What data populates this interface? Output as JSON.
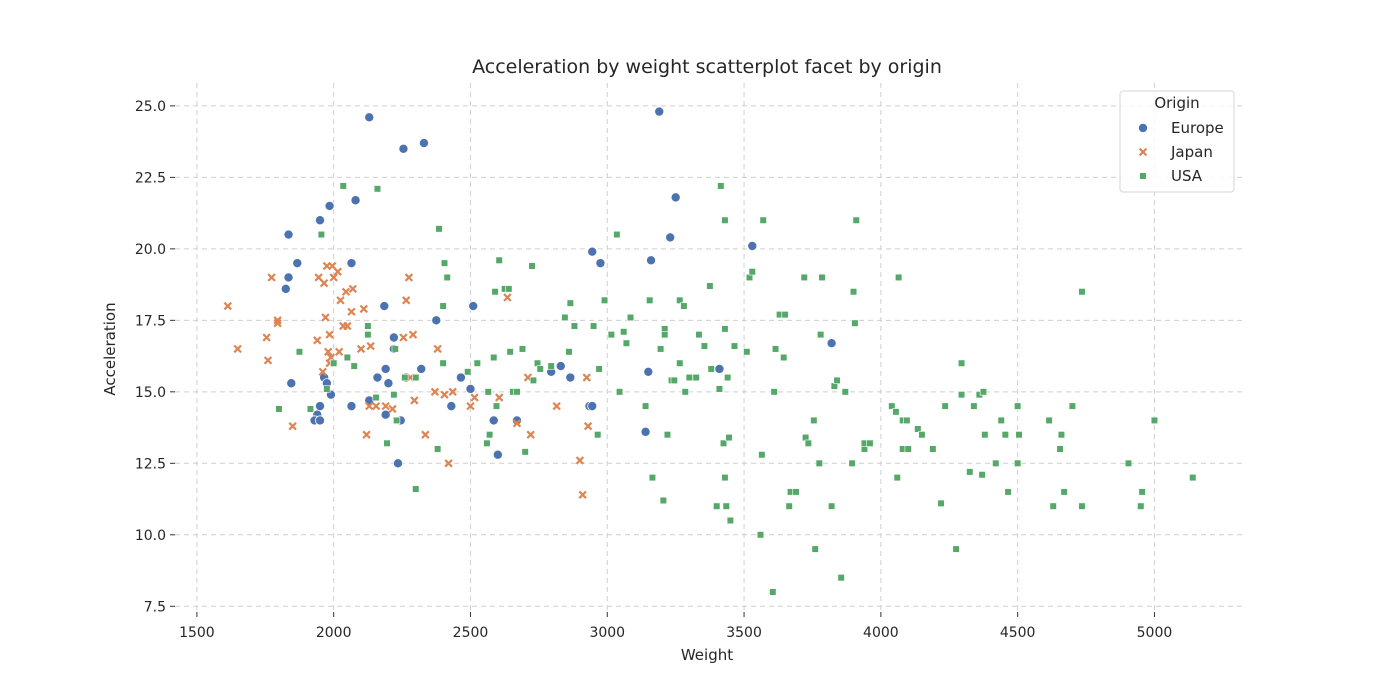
{
  "chart_data": {
    "type": "scatter",
    "title": "Acceleration by weight scatterplot facet by origin",
    "xlabel": "Weight",
    "ylabel": "Acceleration",
    "xlim": [
      1420,
      5320
    ],
    "ylim": [
      7.3,
      25.8
    ],
    "x_ticks": [
      "1500",
      "2000",
      "2500",
      "3000",
      "3500",
      "4000",
      "4500",
      "5000"
    ],
    "y_ticks": [
      "7.5",
      "10.0",
      "12.5",
      "15.0",
      "17.5",
      "20.0",
      "22.5",
      "25.0"
    ],
    "grid": true,
    "legend": {
      "title": "Origin",
      "placement": "top-right"
    },
    "series": [
      {
        "name": "Europe",
        "marker": "circle",
        "color": "#4c72b0",
        "points": [
          [
            1835,
            20.5
          ],
          [
            1825,
            18.6
          ],
          [
            1835,
            19.0
          ],
          [
            1867,
            19.5
          ],
          [
            1845,
            15.3
          ],
          [
            1940,
            14.2
          ],
          [
            1950,
            14.5
          ],
          [
            1930,
            14.0
          ],
          [
            1950,
            14.0
          ],
          [
            1965,
            15.5
          ],
          [
            1975,
            15.3
          ],
          [
            1990,
            14.9
          ],
          [
            1950,
            21.0
          ],
          [
            1985,
            21.5
          ],
          [
            2080,
            21.7
          ],
          [
            2065,
            19.5
          ],
          [
            2130,
            24.6
          ],
          [
            2255,
            23.5
          ],
          [
            2330,
            23.7
          ],
          [
            2130,
            14.7
          ],
          [
            2065,
            14.5
          ],
          [
            2190,
            14.2
          ],
          [
            2160,
            15.5
          ],
          [
            2190,
            15.8
          ],
          [
            2200,
            15.3
          ],
          [
            2185,
            18.0
          ],
          [
            2220,
            16.9
          ],
          [
            2220,
            16.5
          ],
          [
            2235,
            12.5
          ],
          [
            2245,
            14.0
          ],
          [
            2265,
            15.5
          ],
          [
            2320,
            15.8
          ],
          [
            2375,
            17.5
          ],
          [
            2430,
            14.5
          ],
          [
            2465,
            15.5
          ],
          [
            2500,
            15.1
          ],
          [
            2510,
            18.0
          ],
          [
            2585,
            14.0
          ],
          [
            2600,
            12.8
          ],
          [
            2670,
            14.0
          ],
          [
            2795,
            15.7
          ],
          [
            2830,
            15.9
          ],
          [
            2865,
            15.5
          ],
          [
            2935,
            14.5
          ],
          [
            2945,
            14.5
          ],
          [
            2945,
            19.9
          ],
          [
            2975,
            19.5
          ],
          [
            3140,
            13.6
          ],
          [
            3150,
            15.7
          ],
          [
            3160,
            19.6
          ],
          [
            3190,
            24.8
          ],
          [
            3230,
            20.4
          ],
          [
            3250,
            21.8
          ],
          [
            3410,
            15.8
          ],
          [
            3530,
            20.1
          ],
          [
            3820,
            16.7
          ]
        ]
      },
      {
        "name": "Japan",
        "marker": "x",
        "color": "#dd8452",
        "points": [
          [
            1613,
            18.0
          ],
          [
            1649,
            16.5
          ],
          [
            1755,
            16.9
          ],
          [
            1760,
            16.1
          ],
          [
            1773,
            19.0
          ],
          [
            1795,
            17.4
          ],
          [
            1795,
            17.5
          ],
          [
            1850,
            13.8
          ],
          [
            1940,
            16.8
          ],
          [
            1945,
            19.0
          ],
          [
            1960,
            15.7
          ],
          [
            1965,
            18.8
          ],
          [
            1970,
            17.6
          ],
          [
            1975,
            19.4
          ],
          [
            1980,
            16.4
          ],
          [
            1985,
            17.0
          ],
          [
            1985,
            16.0
          ],
          [
            1990,
            16.2
          ],
          [
            1995,
            19.4
          ],
          [
            2000,
            19.0
          ],
          [
            2015,
            19.2
          ],
          [
            2020,
            16.4
          ],
          [
            2025,
            18.2
          ],
          [
            2035,
            17.3
          ],
          [
            2045,
            18.5
          ],
          [
            2050,
            17.3
          ],
          [
            2065,
            17.8
          ],
          [
            2070,
            18.6
          ],
          [
            2100,
            16.5
          ],
          [
            2110,
            17.9
          ],
          [
            2120,
            13.5
          ],
          [
            2130,
            14.5
          ],
          [
            2135,
            16.6
          ],
          [
            2155,
            14.5
          ],
          [
            2190,
            14.5
          ],
          [
            2215,
            14.4
          ],
          [
            2255,
            16.9
          ],
          [
            2265,
            18.2
          ],
          [
            2275,
            19.0
          ],
          [
            2280,
            15.5
          ],
          [
            2290,
            17.0
          ],
          [
            2295,
            14.7
          ],
          [
            2335,
            13.5
          ],
          [
            2370,
            15.0
          ],
          [
            2380,
            16.5
          ],
          [
            2405,
            14.9
          ],
          [
            2420,
            12.5
          ],
          [
            2435,
            15.0
          ],
          [
            2500,
            14.5
          ],
          [
            2515,
            14.8
          ],
          [
            2605,
            14.8
          ],
          [
            2635,
            18.3
          ],
          [
            2670,
            13.9
          ],
          [
            2710,
            15.5
          ],
          [
            2720,
            13.5
          ],
          [
            2815,
            14.5
          ],
          [
            2900,
            12.6
          ],
          [
            2910,
            11.4
          ],
          [
            2925,
            15.5
          ],
          [
            2930,
            13.8
          ]
        ]
      },
      {
        "name": "USA",
        "marker": "square",
        "color": "#55a868",
        "points": [
          [
            1800,
            14.4
          ],
          [
            1875,
            16.4
          ],
          [
            1915,
            14.4
          ],
          [
            1955,
            20.5
          ],
          [
            1975,
            15.1
          ],
          [
            2000,
            16.0
          ],
          [
            2035,
            22.2
          ],
          [
            2050,
            16.2
          ],
          [
            2075,
            15.9
          ],
          [
            2125,
            17.3
          ],
          [
            2125,
            17.0
          ],
          [
            2155,
            14.8
          ],
          [
            2160,
            22.1
          ],
          [
            2195,
            13.2
          ],
          [
            2220,
            14.9
          ],
          [
            2225,
            16.5
          ],
          [
            2230,
            14.0
          ],
          [
            2260,
            15.5
          ],
          [
            2300,
            11.6
          ],
          [
            2300,
            15.5
          ],
          [
            2380,
            13.0
          ],
          [
            2385,
            20.7
          ],
          [
            2400,
            16.0
          ],
          [
            2400,
            18.0
          ],
          [
            2405,
            19.5
          ],
          [
            2415,
            19.0
          ],
          [
            2490,
            15.7
          ],
          [
            2525,
            16.0
          ],
          [
            2560,
            13.2
          ],
          [
            2565,
            15.0
          ],
          [
            2570,
            13.5
          ],
          [
            2585,
            16.2
          ],
          [
            2590,
            18.5
          ],
          [
            2595,
            14.5
          ],
          [
            2605,
            19.6
          ],
          [
            2625,
            18.6
          ],
          [
            2640,
            18.6
          ],
          [
            2645,
            16.4
          ],
          [
            2655,
            15.0
          ],
          [
            2670,
            15.0
          ],
          [
            2690,
            16.5
          ],
          [
            2700,
            12.9
          ],
          [
            2725,
            19.4
          ],
          [
            2730,
            15.4
          ],
          [
            2745,
            16.0
          ],
          [
            2755,
            15.8
          ],
          [
            2795,
            15.9
          ],
          [
            2845,
            17.6
          ],
          [
            2860,
            16.4
          ],
          [
            2865,
            18.1
          ],
          [
            2880,
            17.3
          ],
          [
            2950,
            17.3
          ],
          [
            2965,
            13.5
          ],
          [
            2970,
            15.8
          ],
          [
            2990,
            18.2
          ],
          [
            3015,
            17.0
          ],
          [
            3035,
            20.5
          ],
          [
            3045,
            15.0
          ],
          [
            3060,
            17.1
          ],
          [
            3070,
            16.7
          ],
          [
            3085,
            17.6
          ],
          [
            3140,
            14.5
          ],
          [
            3155,
            18.2
          ],
          [
            3165,
            12.0
          ],
          [
            3195,
            16.5
          ],
          [
            3205,
            11.2
          ],
          [
            3210,
            17.2
          ],
          [
            3210,
            17.0
          ],
          [
            3220,
            13.5
          ],
          [
            3235,
            15.4
          ],
          [
            3245,
            15.4
          ],
          [
            3265,
            16.0
          ],
          [
            3265,
            18.2
          ],
          [
            3280,
            18.0
          ],
          [
            3285,
            15.0
          ],
          [
            3300,
            15.5
          ],
          [
            3325,
            15.5
          ],
          [
            3335,
            17.0
          ],
          [
            3355,
            16.6
          ],
          [
            3375,
            18.7
          ],
          [
            3380,
            15.8
          ],
          [
            3400,
            11.0
          ],
          [
            3410,
            15.1
          ],
          [
            3415,
            22.2
          ],
          [
            3425,
            13.2
          ],
          [
            3430,
            17.2
          ],
          [
            3430,
            21.0
          ],
          [
            3430,
            12.0
          ],
          [
            3435,
            11.0
          ],
          [
            3440,
            15.5
          ],
          [
            3445,
            13.4
          ],
          [
            3450,
            10.5
          ],
          [
            3465,
            16.6
          ],
          [
            3510,
            16.4
          ],
          [
            3520,
            19.0
          ],
          [
            3530,
            19.2
          ],
          [
            3560,
            10.0
          ],
          [
            3565,
            12.8
          ],
          [
            3570,
            21.0
          ],
          [
            3605,
            8.0
          ],
          [
            3610,
            15.0
          ],
          [
            3615,
            16.5
          ],
          [
            3630,
            17.7
          ],
          [
            3645,
            16.2
          ],
          [
            3650,
            17.7
          ],
          [
            3665,
            11.0
          ],
          [
            3670,
            11.5
          ],
          [
            3690,
            11.5
          ],
          [
            3720,
            19.0
          ],
          [
            3725,
            13.4
          ],
          [
            3735,
            13.2
          ],
          [
            3755,
            14.0
          ],
          [
            3760,
            9.5
          ],
          [
            3775,
            12.5
          ],
          [
            3780,
            17.0
          ],
          [
            3785,
            19.0
          ],
          [
            3820,
            11.0
          ],
          [
            3830,
            15.2
          ],
          [
            3840,
            15.4
          ],
          [
            3855,
            8.5
          ],
          [
            3870,
            15.0
          ],
          [
            3895,
            12.5
          ],
          [
            3900,
            18.5
          ],
          [
            3905,
            17.4
          ],
          [
            3910,
            21.0
          ],
          [
            3940,
            13.0
          ],
          [
            3940,
            13.2
          ],
          [
            3960,
            13.2
          ],
          [
            4040,
            14.5
          ],
          [
            4055,
            14.3
          ],
          [
            4060,
            12.0
          ],
          [
            4065,
            19.0
          ],
          [
            4080,
            14.0
          ],
          [
            4080,
            13.0
          ],
          [
            4095,
            14.0
          ],
          [
            4100,
            13.0
          ],
          [
            4135,
            13.7
          ],
          [
            4150,
            13.5
          ],
          [
            4190,
            13.0
          ],
          [
            4220,
            11.1
          ],
          [
            4235,
            14.5
          ],
          [
            4275,
            9.5
          ],
          [
            4295,
            16.0
          ],
          [
            4295,
            14.9
          ],
          [
            4325,
            12.2
          ],
          [
            4340,
            14.5
          ],
          [
            4360,
            14.9
          ],
          [
            4370,
            12.1
          ],
          [
            4375,
            15.0
          ],
          [
            4380,
            13.5
          ],
          [
            4420,
            12.5
          ],
          [
            4440,
            14.0
          ],
          [
            4455,
            13.5
          ],
          [
            4465,
            11.5
          ],
          [
            4500,
            14.5
          ],
          [
            4500,
            12.5
          ],
          [
            4505,
            13.5
          ],
          [
            4615,
            14.0
          ],
          [
            4630,
            11.0
          ],
          [
            4655,
            13.0
          ],
          [
            4660,
            13.5
          ],
          [
            4670,
            11.5
          ],
          [
            4700,
            14.5
          ],
          [
            4735,
            18.5
          ],
          [
            4735,
            11.0
          ],
          [
            4905,
            12.5
          ],
          [
            4950,
            11.0
          ],
          [
            4955,
            11.5
          ],
          [
            5000,
            14.0
          ],
          [
            5140,
            12.0
          ]
        ]
      }
    ]
  }
}
